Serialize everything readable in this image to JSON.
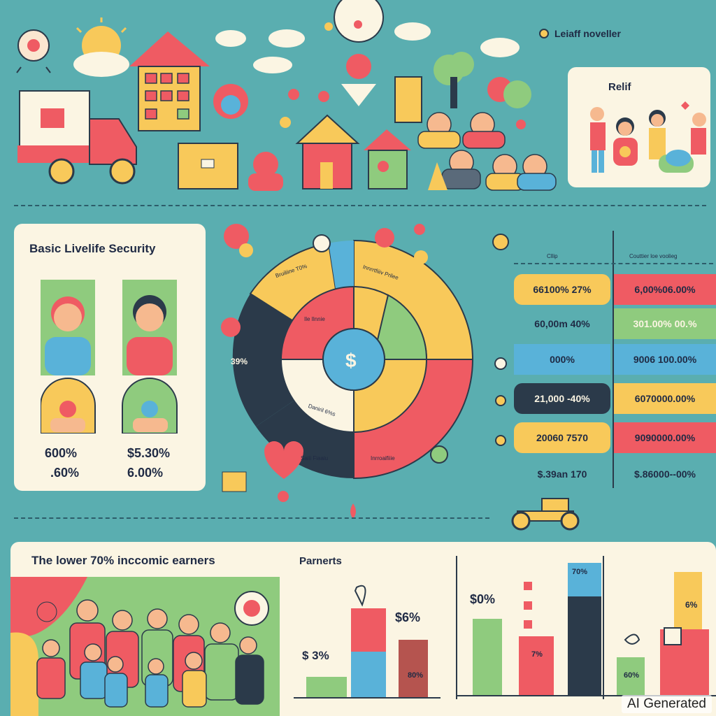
{
  "header": {
    "top_label": "Leiaff noveller"
  },
  "relief_card": {
    "title": "Relif"
  },
  "security_card": {
    "title": "Basic Livelife Security",
    "stats_left": [
      "600%",
      ".60%"
    ],
    "stats_right": [
      "$5.30%",
      "6.00%"
    ]
  },
  "donut": {
    "outer_labels": [
      "Bruiliine T0%",
      "Innrrtfiiiv Prilee",
      "Saiii Fiaaiu",
      "Inrroaifiiie"
    ],
    "inner_labels": [
      "Ile Ilnnie",
      "Daniril 6%s"
    ],
    "left_value": "39%",
    "center_symbol": "$"
  },
  "table": {
    "col_headers": [
      "Cllip",
      "Couttier loe voolieg"
    ],
    "rows": [
      {
        "left": "66100% 27%",
        "right": "6,00%06.00%"
      },
      {
        "left": "60,00m 40%",
        "right": "301.00% 00.%"
      },
      {
        "left": "000%",
        "right": "9006 100.00%"
      },
      {
        "left": "21,000 -40%",
        "right": "6070000.00%"
      },
      {
        "left": "20060 7570",
        "right": "9090000.00%"
      },
      {
        "left": "$.39an 170",
        "right": "$.86000--00%"
      }
    ]
  },
  "bottom": {
    "title": "The lower 70% inccomic earners",
    "parents_label": "Parnerts",
    "labels": [
      "$ 3%",
      "$6%",
      "$0%",
      "7%",
      "6%",
      "70%",
      "60%",
      "80%"
    ]
  },
  "colors": {
    "background": "#5aaeb0",
    "panel": "#fbf5e3",
    "red": "#ef5b63",
    "yellow": "#f8c95a",
    "green": "#8fcb7e",
    "blue": "#59b2d9",
    "navy": "#2b3a4a"
  },
  "watermark": "AI Generated"
}
